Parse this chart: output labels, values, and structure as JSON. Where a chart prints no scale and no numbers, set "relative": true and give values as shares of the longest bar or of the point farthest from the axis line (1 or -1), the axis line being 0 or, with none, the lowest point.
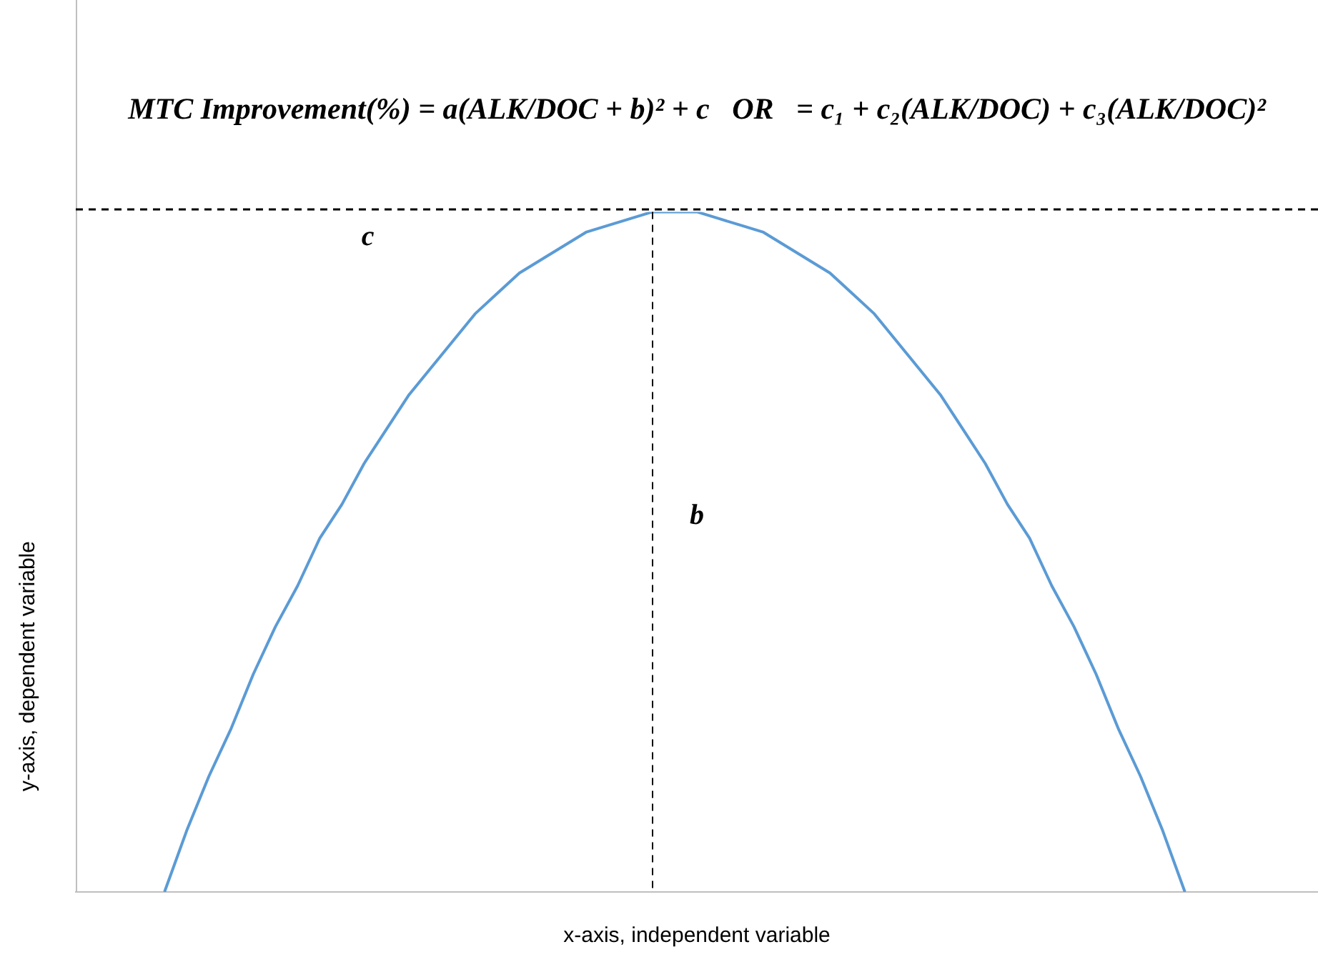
{
  "chart_data": {
    "type": "line",
    "title": "MTC Improvement(%) = a(ALK/DOC + b)² + c   OR   = c₁ + c₂(ALK/DOC) + c₃(ALK/DOC)²",
    "xlabel": "x-axis, independent variable",
    "ylabel": "y-axis, dependent variable",
    "relative": true,
    "grid": false,
    "legend": false,
    "marker": "none",
    "line_style": "solid",
    "categories": [
      null,
      null,
      null,
      null,
      null,
      null,
      null,
      null,
      null,
      null,
      null,
      null,
      null,
      null,
      null,
      null,
      null,
      null,
      null,
      null,
      null,
      null,
      null,
      null,
      null,
      null,
      null,
      null,
      null,
      null,
      null,
      null,
      null,
      null,
      null,
      null,
      null,
      null,
      null,
      null,
      null,
      null,
      null,
      null,
      null,
      null,
      null,
      null,
      null,
      null,
      null,
      null,
      null,
      null,
      null,
      null,
      null
    ],
    "series": [
      {
        "color": "#5b9bd5",
        "values": [
          null,
          null,
          null,
          null,
          0,
          0.09,
          0.17,
          0.24,
          0.32,
          0.39,
          0.45,
          0.52,
          0.57,
          0.63,
          0.68,
          0.73,
          0.77,
          0.81,
          0.85,
          0.88,
          0.91,
          0.93,
          0.95,
          0.97,
          0.98,
          0.99,
          1.0,
          1,
          1.0,
          0.99,
          0.98,
          0.97,
          0.95,
          0.93,
          0.91,
          0.88,
          0.85,
          0.81,
          0.77,
          0.73,
          0.68,
          0.63,
          0.57,
          0.52,
          0.45,
          0.39,
          0.32,
          0.24,
          0.17,
          0.09,
          0,
          null,
          null,
          null,
          null,
          null,
          null
        ]
      }
    ],
    "annotations": [
      "b"
    ],
    "ref_lines": [
      {
        "axis": "y",
        "value": 1,
        "label": "c",
        "line_style": "dashed",
        "color": "#000000"
      }
    ]
  }
}
